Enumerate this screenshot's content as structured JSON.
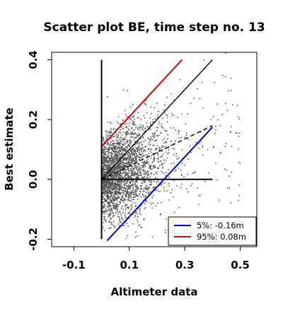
{
  "chart_data": {
    "type": "scatter",
    "title": "Scatter plot BE, time step no. 13",
    "xlabel": "Altimeter data",
    "ylabel": "Best estimate",
    "xlim": [
      -0.18,
      0.56
    ],
    "ylim": [
      -0.225,
      0.425
    ],
    "xticks": [
      -0.1,
      0.1,
      0.3,
      0.5
    ],
    "xtick_labels": [
      "-0.1",
      "0.1",
      "0.3",
      "0.5"
    ],
    "yticks": [
      -0.2,
      0.0,
      0.2,
      0.4
    ],
    "ytick_labels": [
      "-0.2",
      "0.0",
      "0.2",
      "0.4"
    ],
    "grid": false,
    "legend_position": "bottom-right",
    "scatter_color": "#555555",
    "points": {
      "description_free": true,
      "count": 3000,
      "x_min": 0.0,
      "slope": 0.55,
      "intercept": 0.0,
      "spread": 0.09
    },
    "lines": [
      {
        "name": "5%: -0.16m",
        "color": "#0000ff",
        "style": "solid",
        "x": [
          0.02,
          0.4
        ],
        "y": [
          -0.205,
          0.175
        ]
      },
      {
        "name": "95%:  0.08m",
        "color": "#dd0000",
        "style": "solid",
        "x": [
          0.0,
          0.29
        ],
        "y": [
          0.11,
          0.4
        ]
      },
      {
        "name": "",
        "color": "#000000",
        "style": "solid",
        "x": [
          0.0,
          0.4
        ],
        "y": [
          0.0,
          0.4
        ]
      },
      {
        "name": "",
        "color": "#000000",
        "style": "dashed",
        "x": [
          0.0,
          0.4
        ],
        "y": [
          0.0,
          0.18
        ]
      },
      {
        "name": "",
        "color": "#000000",
        "style": "solid",
        "x": [
          0.0,
          0.4
        ],
        "y": [
          0.0,
          0.0
        ]
      },
      {
        "name": "",
        "color": "#000000",
        "style": "solid",
        "x": [
          0.0,
          0.0
        ],
        "y": [
          -0.2,
          0.4
        ]
      }
    ],
    "legend": [
      {
        "label": "5%: -0.16m",
        "color": "#0000ff"
      },
      {
        "label": "95%:  0.08m",
        "color": "#dd0000"
      }
    ]
  }
}
